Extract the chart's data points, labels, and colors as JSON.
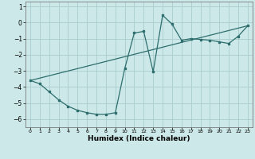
{
  "xlabel": "Humidex (Indice chaleur)",
  "background_color": "#cce8e8",
  "grid_color": "#aacccc",
  "line_color": "#2e6e6e",
  "ylim": [
    -6.5,
    1.3
  ],
  "xlim": [
    -0.5,
    23.5
  ],
  "yticks": [
    1,
    0,
    -1,
    -2,
    -3,
    -4,
    -5,
    -6
  ],
  "xticks": [
    0,
    1,
    2,
    3,
    4,
    5,
    6,
    7,
    8,
    9,
    10,
    11,
    12,
    13,
    14,
    15,
    16,
    17,
    18,
    19,
    20,
    21,
    22,
    23
  ],
  "line1_x": [
    0,
    1,
    2,
    3,
    4,
    5,
    6,
    7,
    8,
    9,
    10,
    11,
    12,
    13,
    14,
    15,
    16,
    17,
    18,
    19,
    20,
    21,
    22,
    23
  ],
  "line1_y": [
    -3.6,
    -3.8,
    -4.3,
    -4.8,
    -5.2,
    -5.45,
    -5.6,
    -5.7,
    -5.7,
    -5.6,
    -2.85,
    -0.65,
    -0.55,
    -3.05,
    0.45,
    -0.1,
    -1.1,
    -1.0,
    -1.05,
    -1.1,
    -1.2,
    -1.3,
    -0.85,
    -0.2
  ],
  "line2_x": [
    0,
    23
  ],
  "line2_y": [
    -3.6,
    -0.2
  ]
}
